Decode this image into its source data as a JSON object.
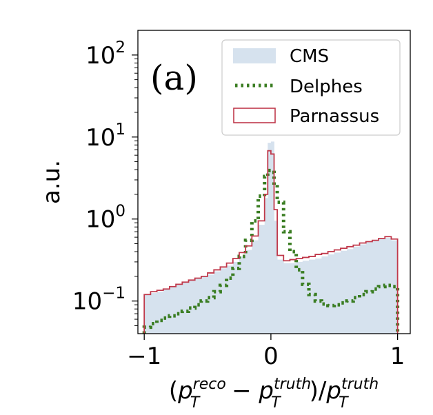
{
  "chart_data": {
    "type": "histogram",
    "panel_label": "(a)",
    "xlabel": "(p_T^reco − p_T^truth)/p_T^truth",
    "xlabel_parts": {
      "open": "(",
      "p1": "p",
      "sub1": "T",
      "sup1": "reco",
      "minus": " − ",
      "p2": "p",
      "sub2": "T",
      "sup2": "truth",
      "close_slash": ")/",
      "p3": "p",
      "sub3": "T",
      "sup3": "truth"
    },
    "ylabel": "a.u.",
    "xlim": [
      -1.05,
      1.1
    ],
    "ylim": [
      0.04,
      200
    ],
    "yscale": "log",
    "xticks": [
      {
        "value": -1,
        "label": "−1"
      },
      {
        "value": 0,
        "label": "0"
      },
      {
        "value": 1,
        "label": "1"
      }
    ],
    "yticks": [
      {
        "value": 0.1,
        "base": "10",
        "exp": "−1"
      },
      {
        "value": 1,
        "base": "10",
        "exp": "0"
      },
      {
        "value": 10,
        "base": "10",
        "exp": "1"
      },
      {
        "value": 100,
        "base": "10",
        "exp": "2"
      }
    ],
    "legend_position": "top-right",
    "bin_edges": [
      -1.0,
      -0.95,
      -0.9,
      -0.85,
      -0.8,
      -0.75,
      -0.7,
      -0.65,
      -0.6,
      -0.55,
      -0.5,
      -0.45,
      -0.4,
      -0.35,
      -0.3,
      -0.25,
      -0.2,
      -0.15,
      -0.1,
      -0.05,
      -0.025,
      0.0,
      0.025,
      0.05,
      0.1,
      0.15,
      0.2,
      0.25,
      0.3,
      0.35,
      0.4,
      0.45,
      0.5,
      0.55,
      0.6,
      0.65,
      0.7,
      0.75,
      0.8,
      0.85,
      0.9,
      0.95,
      1.0
    ],
    "series": [
      {
        "name": "CMS",
        "style": "filled",
        "color": "#d6e2ee",
        "values": [
          0.12,
          0.125,
          0.13,
          0.14,
          0.15,
          0.16,
          0.17,
          0.18,
          0.19,
          0.2,
          0.21,
          0.23,
          0.25,
          0.27,
          0.3,
          0.35,
          0.42,
          0.55,
          0.85,
          1.8,
          8.5,
          8.8,
          0.95,
          0.32,
          0.29,
          0.29,
          0.3,
          0.31,
          0.32,
          0.33,
          0.35,
          0.37,
          0.39,
          0.41,
          0.43,
          0.46,
          0.49,
          0.52,
          0.54,
          0.57,
          0.59,
          0.55
        ]
      },
      {
        "name": "Delphes",
        "style": "dotted",
        "color": "#3a7d22",
        "values": [
          0.048,
          0.053,
          0.058,
          0.062,
          0.066,
          0.07,
          0.075,
          0.082,
          0.09,
          0.1,
          0.11,
          0.13,
          0.155,
          0.19,
          0.25,
          0.35,
          0.55,
          0.95,
          1.9,
          3.3,
          3.9,
          3.7,
          2.6,
          1.6,
          0.7,
          0.4,
          0.24,
          0.16,
          0.12,
          0.1,
          0.092,
          0.088,
          0.09,
          0.095,
          0.1,
          0.11,
          0.12,
          0.13,
          0.14,
          0.15,
          0.155,
          0.15
        ]
      },
      {
        "name": "Parnassus",
        "style": "step",
        "color": "#c0394b",
        "values": [
          0.12,
          0.13,
          0.135,
          0.14,
          0.15,
          0.16,
          0.17,
          0.18,
          0.19,
          0.2,
          0.22,
          0.24,
          0.26,
          0.29,
          0.33,
          0.39,
          0.47,
          0.62,
          0.95,
          2.0,
          6.8,
          6.2,
          1.3,
          0.36,
          0.31,
          0.32,
          0.33,
          0.34,
          0.35,
          0.37,
          0.38,
          0.4,
          0.42,
          0.44,
          0.46,
          0.48,
          0.51,
          0.53,
          0.55,
          0.58,
          0.61,
          0.57
        ]
      }
    ]
  }
}
